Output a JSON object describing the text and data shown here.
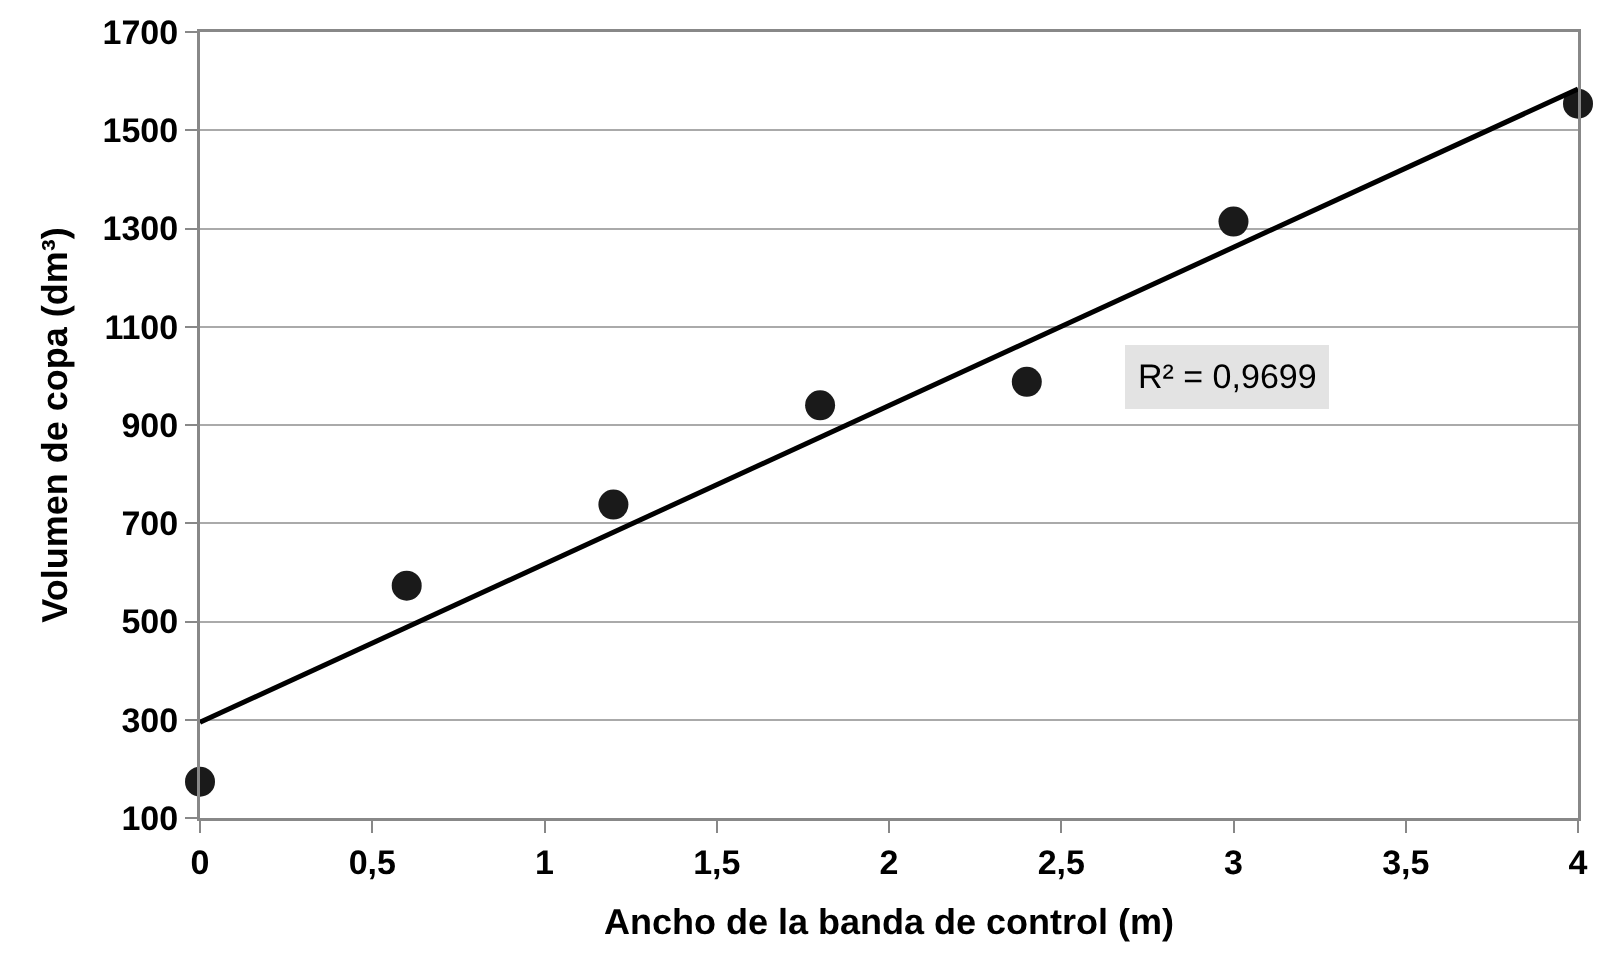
{
  "chart_data": {
    "type": "scatter",
    "xlabel": "Ancho de la banda de control (m)",
    "ylabel": "Volumen de copa (dm³)",
    "x": [
      0,
      0.6,
      1.2,
      1.8,
      2.4,
      3,
      4
    ],
    "series": [
      {
        "type": "scatter",
        "color": "#1a1a1a",
        "marker": "circle",
        "values": [
          174,
          573,
          738,
          940,
          988,
          1314,
          1554
        ]
      },
      {
        "type": "line",
        "color": "#000000",
        "line_style": "solid",
        "marker": "none",
        "x": [
          0,
          4
        ],
        "values": [
          295,
          1584
        ]
      }
    ],
    "annotations": [
      "R² = 0,9699"
    ],
    "xlim": [
      0,
      4
    ],
    "xticks": [
      0,
      {
        "value": 0.5,
        "label": "0,5"
      },
      1,
      {
        "value": 1.5,
        "label": "1,5"
      },
      2,
      {
        "value": 2.5,
        "label": "2,5"
      },
      3,
      {
        "value": 3.5,
        "label": "3,5"
      },
      4
    ],
    "ylim": [
      100,
      1700
    ],
    "yticks": [
      100,
      300,
      500,
      700,
      900,
      1100,
      1300,
      1500,
      1700
    ],
    "grid": "y"
  }
}
